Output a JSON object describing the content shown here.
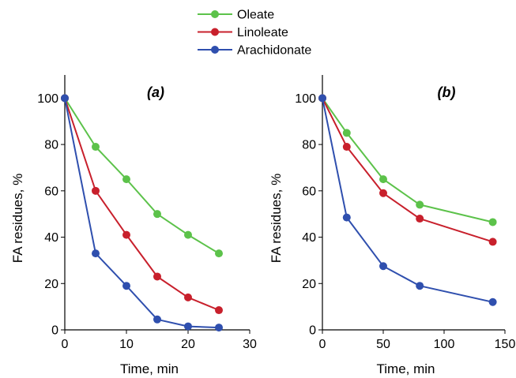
{
  "legend": {
    "position": "top-center",
    "entries": [
      {
        "name": "Oleate",
        "color": "#5cc24a"
      },
      {
        "name": "Linoleate",
        "color": "#c8202c"
      },
      {
        "name": "Arachidonate",
        "color": "#2f4fae"
      }
    ]
  },
  "chart_data": [
    {
      "type": "line",
      "panel_label": "(a)",
      "xlabel": "Time, min",
      "ylabel": "FA residues, %",
      "xlim": [
        0,
        30
      ],
      "ylim": [
        0,
        110
      ],
      "xticks": [
        0,
        10,
        20,
        30
      ],
      "yticks": [
        0,
        20,
        40,
        60,
        80,
        100
      ],
      "grid": false,
      "series": [
        {
          "name": "Oleate",
          "color": "#5cc24a",
          "x": [
            0,
            5,
            10,
            15,
            20,
            25
          ],
          "y": [
            100,
            79,
            65,
            50,
            41,
            33
          ]
        },
        {
          "name": "Linoleate",
          "color": "#c8202c",
          "x": [
            0,
            5,
            10,
            15,
            20,
            25
          ],
          "y": [
            100,
            60,
            41,
            23,
            14,
            8.5
          ]
        },
        {
          "name": "Arachidonate",
          "color": "#2f4fae",
          "x": [
            0,
            5,
            10,
            15,
            20,
            25
          ],
          "y": [
            100,
            33,
            19,
            4.5,
            1.5,
            1
          ]
        }
      ]
    },
    {
      "type": "line",
      "panel_label": "(b)",
      "xlabel": "Time, min",
      "ylabel": "FA residues, %",
      "xlim": [
        0,
        150
      ],
      "ylim": [
        0,
        110
      ],
      "xticks": [
        0,
        50,
        100,
        150
      ],
      "yticks": [
        0,
        20,
        40,
        60,
        80,
        100
      ],
      "grid": false,
      "series": [
        {
          "name": "Oleate",
          "color": "#5cc24a",
          "x": [
            0,
            20,
            50,
            80,
            140
          ],
          "y": [
            100,
            85,
            65,
            54,
            46.5
          ]
        },
        {
          "name": "Linoleate",
          "color": "#c8202c",
          "x": [
            0,
            20,
            50,
            80,
            140
          ],
          "y": [
            100,
            79,
            59,
            48,
            38
          ]
        },
        {
          "name": "Arachidonate",
          "color": "#2f4fae",
          "x": [
            0,
            20,
            50,
            80,
            140
          ],
          "y": [
            100,
            48.5,
            27.5,
            19,
            12
          ]
        }
      ]
    }
  ]
}
